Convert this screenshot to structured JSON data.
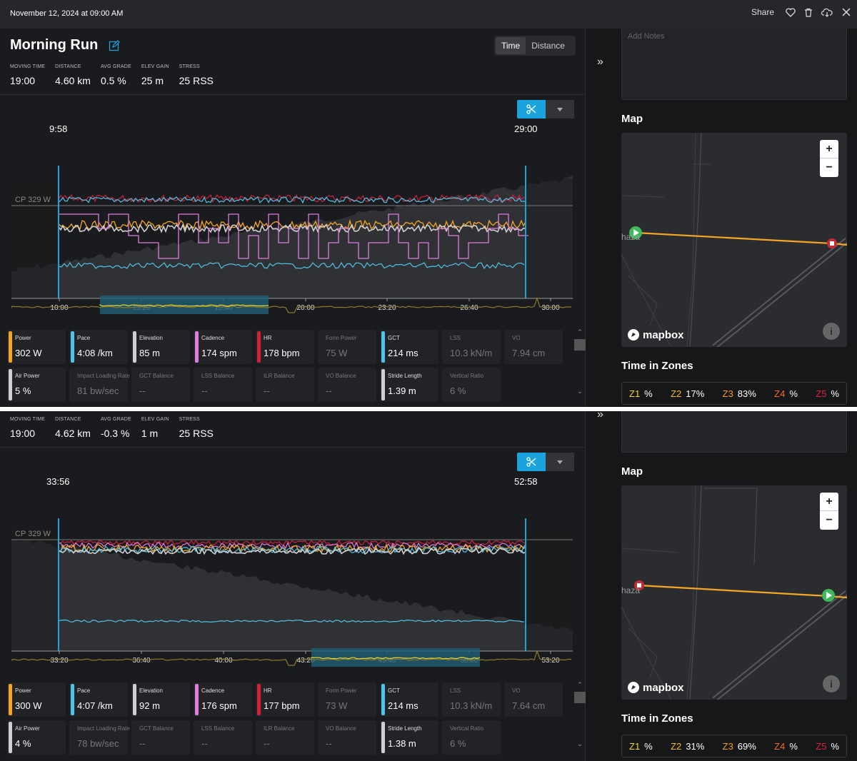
{
  "topbar": {
    "date": "November 12, 2024 at 09:00 AM",
    "share": "Share"
  },
  "activity": {
    "title": "Morning Run",
    "toggle": [
      "Time",
      "Distance"
    ]
  },
  "colors": {
    "power": "#f5a623",
    "pace": "#4fc3e8",
    "elevation": "#cfcfd2",
    "cadence": "#e07be0",
    "hr": "#d0203a",
    "gct": "#4fc3e8",
    "accent": "#1aa3dc"
  },
  "panels": [
    {
      "stats": [
        {
          "label": "MOVING TIME",
          "value": "19:00"
        },
        {
          "label": "DISTANCE",
          "value": "4.60 km"
        },
        {
          "label": "AVG GRADE",
          "value": "0.5 %"
        },
        {
          "label": "ELEV GAIN",
          "value": "25 m"
        },
        {
          "label": "STRESS",
          "value": "25 RSS"
        }
      ],
      "selection": {
        "start": "9:58",
        "end": "29:00"
      },
      "cp_label": "CP 329 W",
      "xticks": [
        "10:00",
        "13:20",
        "16:40",
        "20:00",
        "23:20",
        "26:40",
        "30:00"
      ],
      "metrics_row1": [
        {
          "label": "Power",
          "value": "302 W",
          "color": "#f5a623",
          "dim": false
        },
        {
          "label": "Pace",
          "value": "4:08 /km",
          "color": "#4fc3e8",
          "dim": false
        },
        {
          "label": "Elevation",
          "value": "85 m",
          "color": "#cfcfd2",
          "dim": false
        },
        {
          "label": "Cadence",
          "value": "174 spm",
          "color": "#e07be0",
          "dim": false
        },
        {
          "label": "HR",
          "value": "178 bpm",
          "color": "#d0203a",
          "dim": false
        },
        {
          "label": "Form Power",
          "value": "75 W",
          "color": "",
          "dim": true
        },
        {
          "label": "GCT",
          "value": "214 ms",
          "color": "#4fc3e8",
          "dim": false
        },
        {
          "label": "LSS",
          "value": "10.3 kN/m",
          "color": "",
          "dim": true
        },
        {
          "label": "VO",
          "value": "7.94 cm",
          "color": "",
          "dim": true
        }
      ],
      "metrics_row2": [
        {
          "label": "Air Power",
          "value": "5 %",
          "color": "#cfcfd2",
          "dim": false
        },
        {
          "label": "Impact Loading Rate",
          "value": "81 bw/sec",
          "color": "",
          "dim": true
        },
        {
          "label": "GCT Balance",
          "value": "--",
          "color": "",
          "dim": true
        },
        {
          "label": "LSS Balance",
          "value": "--",
          "color": "",
          "dim": true
        },
        {
          "label": "ILR Balance",
          "value": "--",
          "color": "",
          "dim": true
        },
        {
          "label": "VO Balance",
          "value": "--",
          "color": "",
          "dim": true
        },
        {
          "label": "Stride Length",
          "value": "1.39 m",
          "color": "#cfcfd2",
          "dim": false
        },
        {
          "label": "Vertical Ratio",
          "value": "6 %",
          "color": "",
          "dim": true
        }
      ],
      "zones": {
        "title": "Time in Zones",
        "items": [
          {
            "name": "Z1",
            "value": "%",
            "color": "#f5d623"
          },
          {
            "name": "Z2",
            "value": "17%",
            "color": "#f5b823"
          },
          {
            "name": "Z3",
            "value": "83%",
            "color": "#f59a23"
          },
          {
            "name": "Z4",
            "value": "%",
            "color": "#f56a23"
          },
          {
            "name": "Z5",
            "value": "%",
            "color": "#e0203a"
          }
        ]
      },
      "notes_placeholder": "Add Notes",
      "map_title": "Map",
      "map_brand": "mapbox",
      "map_town": "haza"
    },
    {
      "stats": [
        {
          "label": "MOVING TIME",
          "value": "19:00"
        },
        {
          "label": "DISTANCE",
          "value": "4.62 km"
        },
        {
          "label": "AVG GRADE",
          "value": "-0.3 %"
        },
        {
          "label": "ELEV GAIN",
          "value": "1 m"
        },
        {
          "label": "STRESS",
          "value": "25 RSS"
        }
      ],
      "selection": {
        "start": "33:56",
        "end": "52:58"
      },
      "cp_label": "CP 329 W",
      "xticks": [
        "33:20",
        "36:40",
        "40:00",
        "43:20",
        "46:40",
        "50:00",
        "53:20"
      ],
      "metrics_row1": [
        {
          "label": "Power",
          "value": "300 W",
          "color": "#f5a623",
          "dim": false
        },
        {
          "label": "Pace",
          "value": "4:07 /km",
          "color": "#4fc3e8",
          "dim": false
        },
        {
          "label": "Elevation",
          "value": "92 m",
          "color": "#cfcfd2",
          "dim": false
        },
        {
          "label": "Cadence",
          "value": "176 spm",
          "color": "#e07be0",
          "dim": false
        },
        {
          "label": "HR",
          "value": "177 bpm",
          "color": "#d0203a",
          "dim": false
        },
        {
          "label": "Form Power",
          "value": "73 W",
          "color": "",
          "dim": true
        },
        {
          "label": "GCT",
          "value": "214 ms",
          "color": "#4fc3e8",
          "dim": false
        },
        {
          "label": "LSS",
          "value": "10.3 kN/m",
          "color": "",
          "dim": true
        },
        {
          "label": "VO",
          "value": "7.64 cm",
          "color": "",
          "dim": true
        }
      ],
      "metrics_row2": [
        {
          "label": "Air Power",
          "value": "4 %",
          "color": "#cfcfd2",
          "dim": false
        },
        {
          "label": "Impact Loading Rate",
          "value": "78 bw/sec",
          "color": "",
          "dim": true
        },
        {
          "label": "GCT Balance",
          "value": "--",
          "color": "",
          "dim": true
        },
        {
          "label": "LSS Balance",
          "value": "--",
          "color": "",
          "dim": true
        },
        {
          "label": "ILR Balance",
          "value": "--",
          "color": "",
          "dim": true
        },
        {
          "label": "VO Balance",
          "value": "--",
          "color": "",
          "dim": true
        },
        {
          "label": "Stride Length",
          "value": "1.38 m",
          "color": "#cfcfd2",
          "dim": false
        },
        {
          "label": "Vertical Ratio",
          "value": "6 %",
          "color": "",
          "dim": true
        }
      ],
      "zones": {
        "title": "Time in Zones",
        "items": [
          {
            "name": "Z1",
            "value": "%",
            "color": "#f5d623"
          },
          {
            "name": "Z2",
            "value": "31%",
            "color": "#f5b823"
          },
          {
            "name": "Z3",
            "value": "69%",
            "color": "#f59a23"
          },
          {
            "name": "Z4",
            "value": "%",
            "color": "#f56a23"
          },
          {
            "name": "Z5",
            "value": "%",
            "color": "#e0203a"
          }
        ]
      },
      "map_title": "Map",
      "map_brand": "mapbox",
      "map_town": "haza"
    }
  ]
}
